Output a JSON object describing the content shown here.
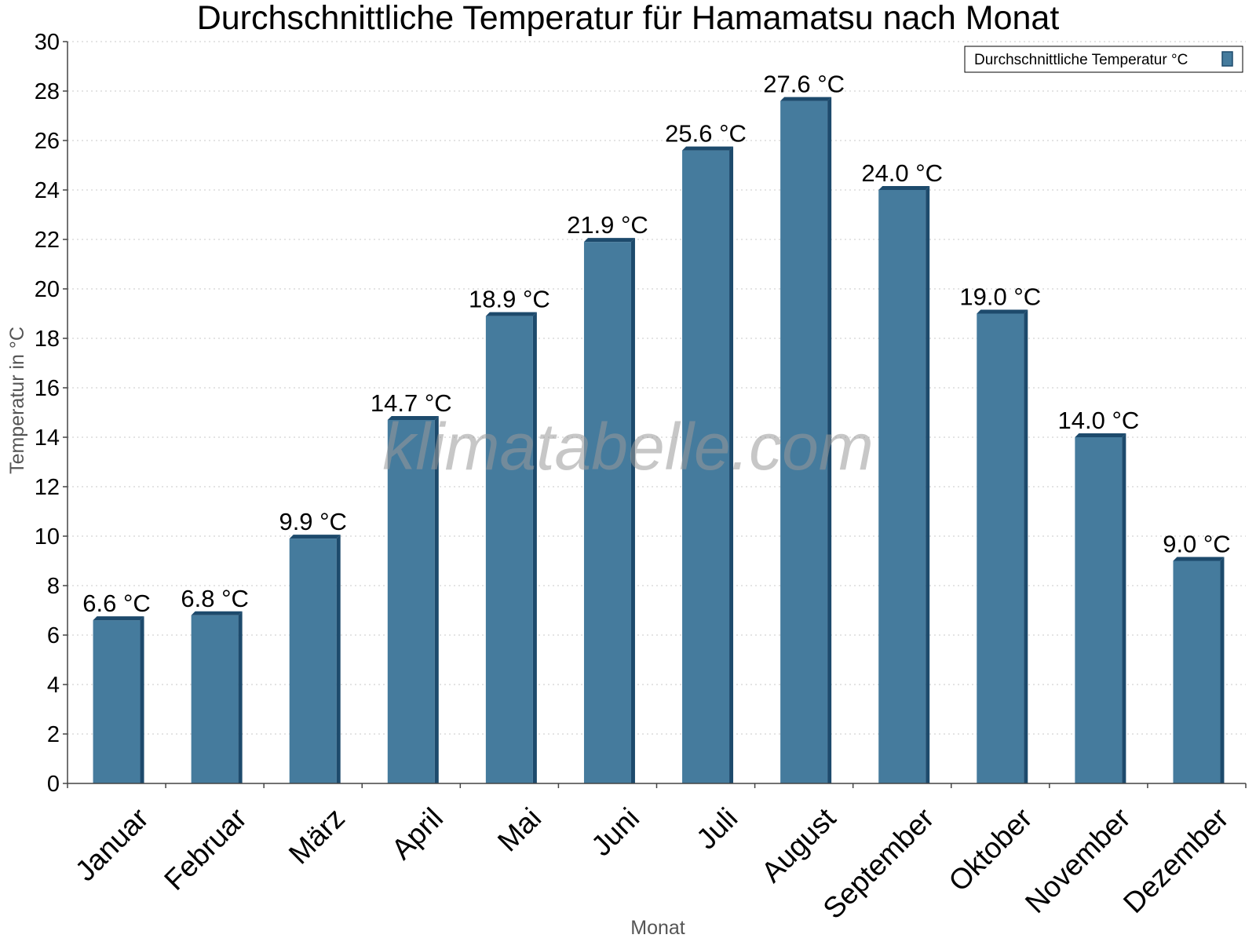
{
  "chart_data": {
    "type": "bar",
    "title": "Durchschnittliche Temperatur für Hamamatsu nach Monat",
    "xlabel": "Monat",
    "ylabel": "Temperatur in °C",
    "categories": [
      "Januar",
      "Februar",
      "März",
      "April",
      "Mai",
      "Juni",
      "Juli",
      "August",
      "September",
      "Oktober",
      "November",
      "Dezember"
    ],
    "series": [
      {
        "name": "Durchschnittliche Temperatur °C",
        "values": [
          6.6,
          6.8,
          9.9,
          14.7,
          18.9,
          21.9,
          25.6,
          27.6,
          24.0,
          19.0,
          14.0,
          9.0
        ],
        "labels": [
          "6.6 °C",
          "6.8 °C",
          "9.9 °C",
          "14.7 °C",
          "18.9 °C",
          "21.9 °C",
          "25.6 °C",
          "27.6 °C",
          "24.0 °C",
          "19.0 °C",
          "14.0 °C",
          "9.0 °C"
        ],
        "color": "#457b9d",
        "edge_color": "#1d4a6c"
      }
    ],
    "ylim": [
      0,
      30
    ],
    "yticks": [
      "0",
      "2",
      "4",
      "6",
      "8",
      "10",
      "12",
      "14",
      "16",
      "18",
      "20",
      "22",
      "24",
      "26",
      "28",
      "30"
    ],
    "grid": true,
    "legend_position": "top-right"
  },
  "watermark": "klimatabelle.com"
}
